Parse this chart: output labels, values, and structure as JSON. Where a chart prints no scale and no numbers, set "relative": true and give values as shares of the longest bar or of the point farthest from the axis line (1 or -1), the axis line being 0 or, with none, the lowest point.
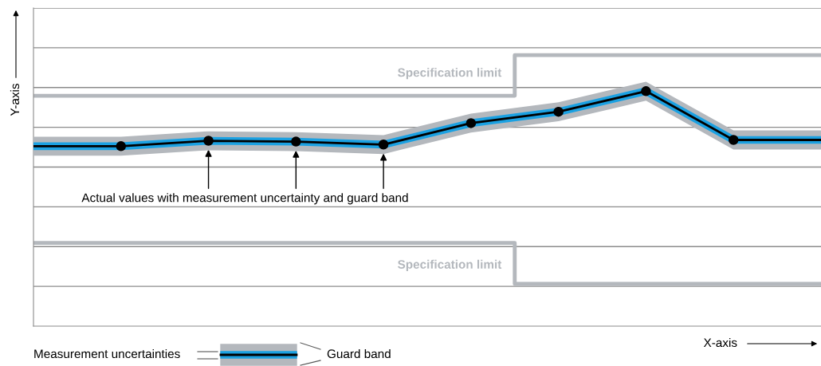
{
  "chart_data": {
    "type": "line",
    "relative": true,
    "xlabel": "X-axis",
    "ylabel": "Y-axis",
    "grid": "y",
    "legend": false,
    "marker": "circle",
    "line_style": "solid",
    "categories": [
      null,
      null,
      null,
      null,
      null,
      null,
      null,
      null,
      null,
      null
    ],
    "series": [
      {
        "name": "Specification limit",
        "type": "step",
        "marker": "none",
        "color": "#b4b8bd",
        "values": [
          0.85,
          0.85,
          0.85,
          0.85,
          0.85,
          0.85,
          1.0,
          1.0,
          1.0,
          1.0
        ]
      },
      {
        "name": "Specification limit",
        "type": "step",
        "marker": "none",
        "color": "#b4b8bd",
        "values": [
          0.307,
          0.307,
          0.307,
          0.307,
          0.307,
          0.307,
          0.156,
          0.156,
          0.156,
          0.156
        ]
      },
      {
        "color": "#000000",
        "values": [
          0.664,
          0.664,
          0.684,
          0.681,
          0.67,
          0.749,
          0.791,
          0.867,
          0.687,
          0.687
        ],
        "lower": [
          0.629,
          0.629,
          0.649,
          0.646,
          0.635,
          0.714,
          0.756,
          0.832,
          0.652,
          0.652
        ],
        "upper": [
          0.699,
          0.699,
          0.719,
          0.716,
          0.705,
          0.784,
          0.826,
          0.902,
          0.722,
          0.722
        ]
      }
    ],
    "annotations": [
      "Actual values with measurement uncertainty and guard band",
      "Measurement uncertainties",
      "Guard band"
    ]
  }
}
